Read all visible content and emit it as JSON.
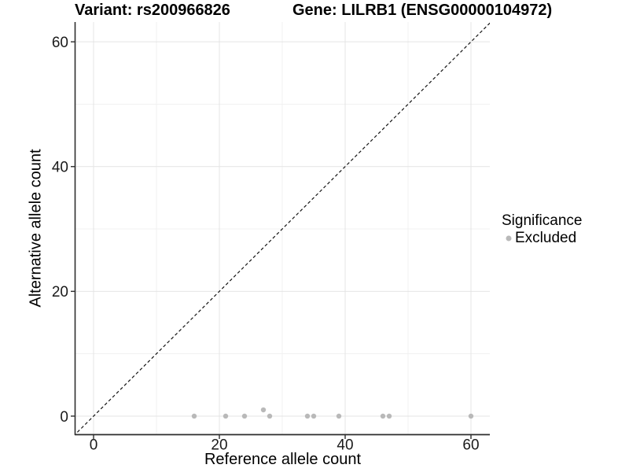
{
  "titles": {
    "variant": "Variant: rs200966826",
    "gene": "Gene: LILRB1 (ENSG00000104972)"
  },
  "axes": {
    "x": {
      "label": "Reference allele count",
      "ticks": [
        0,
        20,
        40,
        60
      ],
      "minor_ticks": [
        10,
        30,
        50
      ]
    },
    "y": {
      "label": "Alternative allele count",
      "ticks": [
        0,
        20,
        40,
        60
      ],
      "minor_ticks": [
        10,
        30,
        50
      ]
    }
  },
  "legend": {
    "title": "Significance",
    "entries": [
      {
        "label": "Excluded",
        "color": "#b9b9b9"
      }
    ]
  },
  "chart_data": {
    "type": "scatter",
    "title": "Variant: rs200966826 / Gene: LILRB1 (ENSG00000104972)",
    "xlabel": "Reference allele count",
    "ylabel": "Alternative allele count",
    "xlim": [
      -2.875,
      63.0
    ],
    "ylim": [
      -3.03,
      63.17
    ],
    "grid": true,
    "legend_position": "right",
    "series": [
      {
        "name": "Excluded",
        "color": "#b9b9b9",
        "points": [
          [
            16,
            0
          ],
          [
            21,
            0
          ],
          [
            24,
            0
          ],
          [
            27,
            1
          ],
          [
            28,
            0
          ],
          [
            34,
            0
          ],
          [
            35,
            0
          ],
          [
            39,
            0
          ],
          [
            46,
            0
          ],
          [
            47,
            0
          ],
          [
            60,
            0
          ]
        ]
      }
    ],
    "identity_line": {
      "style": "dashed",
      "slope": 1,
      "intercept": 0
    }
  },
  "colors": {
    "point": "#b9b9b9",
    "grid_major": "#e4e4e4",
    "grid_minor": "#f1f1f1",
    "axis_line": "#2e2e2e",
    "tick_text": "#1a1a1a",
    "identity_line": "#141414"
  }
}
